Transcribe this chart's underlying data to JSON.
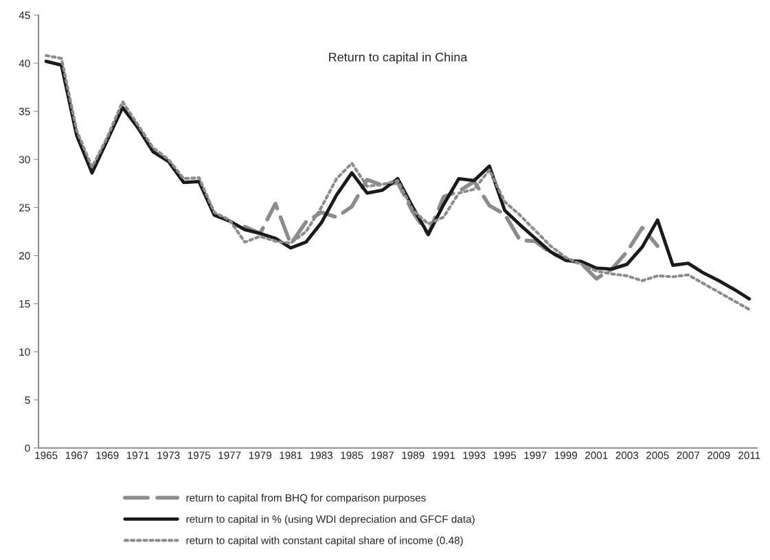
{
  "chart_data": {
    "type": "line",
    "title": "Return to capital in China",
    "categories": [
      "1965",
      null,
      "1967",
      null,
      "1969",
      null,
      "1971",
      null,
      "1973",
      null,
      "1975",
      null,
      "1977",
      null,
      "1979",
      null,
      "1981",
      null,
      "1983",
      null,
      "1985",
      null,
      "1987",
      null,
      "1989",
      null,
      "1991",
      null,
      "1993",
      null,
      "1995",
      null,
      "1997",
      null,
      "1999",
      null,
      "2001",
      null,
      "2003",
      null,
      "2005",
      null,
      "2007",
      null,
      "2009",
      null,
      "2011"
    ],
    "ylim": [
      0,
      45
    ],
    "yticks": [
      0,
      5,
      10,
      15,
      20,
      25,
      30,
      35,
      40,
      45
    ],
    "grid": false,
    "legend": "bottom",
    "marker": "none",
    "series": [
      {
        "name": "return to capital from BHQ for comparison purposes",
        "color": "#8c8c8c",
        "line_style": "dashed",
        "values": [
          null,
          null,
          null,
          null,
          null,
          null,
          null,
          null,
          null,
          null,
          null,
          null,
          null,
          23.0,
          22.3,
          25.4,
          21.2,
          23.5,
          24.5,
          24.0,
          25.1,
          27.9,
          27.3,
          27.6,
          24.5,
          22.2,
          26.1,
          26.7,
          27.7,
          25.2,
          24.3,
          21.6,
          21.5,
          20.3,
          19.6,
          19.2,
          17.6,
          18.6,
          20.4,
          22.9,
          21.0,
          null,
          null,
          null,
          null,
          null,
          null
        ]
      },
      {
        "name": "return to capital in % (using WDI depreciation and GFCF data)",
        "color": "#1a1a1a",
        "line_style": "solid",
        "values": [
          40.2,
          39.8,
          32.5,
          28.6,
          32.0,
          35.4,
          33.3,
          30.8,
          29.8,
          27.6,
          27.7,
          24.2,
          23.6,
          22.7,
          22.3,
          21.8,
          20.8,
          21.4,
          23.4,
          26.3,
          28.6,
          26.5,
          26.8,
          28.0,
          25.0,
          22.2,
          25.3,
          28.0,
          27.8,
          29.3,
          24.7,
          23.2,
          21.8,
          20.4,
          19.5,
          19.4,
          18.7,
          18.6,
          19.1,
          20.9,
          23.7,
          19.0,
          19.2,
          18.2,
          17.4,
          16.5,
          15.5
        ]
      },
      {
        "name": "return to capital with constant capital share of income (0.48)",
        "color": "#8c8c8c",
        "line_style": "dotted",
        "values": [
          40.8,
          40.5,
          33.0,
          29.2,
          32.3,
          36.0,
          33.6,
          31.2,
          30.0,
          28.0,
          28.1,
          24.5,
          23.7,
          21.4,
          22.0,
          21.5,
          21.3,
          22.5,
          25.0,
          28.0,
          29.6,
          27.2,
          27.4,
          27.8,
          24.7,
          23.3,
          24.0,
          26.5,
          26.9,
          28.9,
          25.6,
          24.2,
          22.6,
          21.0,
          19.8,
          19.1,
          18.4,
          18.1,
          17.9,
          17.4,
          17.9,
          17.8,
          18.0,
          17.1,
          16.2,
          15.3,
          14.4
        ]
      }
    ]
  }
}
